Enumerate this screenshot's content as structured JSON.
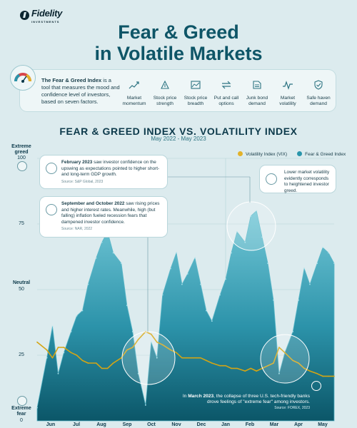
{
  "brand": {
    "name": "Fidelity",
    "tagline": "INVESTMENTS"
  },
  "title": {
    "line1": "Fear & Greed",
    "line2": "in Volatile Markets"
  },
  "intro": {
    "bold": "The Fear & Greed Index",
    "rest": " is a tool that measures the mood and confidence level of investors, based on seven factors.",
    "factors": [
      {
        "icon": "market-momentum-icon",
        "label": "Market momentum"
      },
      {
        "icon": "stock-strength-icon",
        "label": "Stock price strength"
      },
      {
        "icon": "stock-breadth-icon",
        "label": "Stock price breadth"
      },
      {
        "icon": "put-call-icon",
        "label": "Put and call options"
      },
      {
        "icon": "junk-bond-icon",
        "label": "Junk bond demand"
      },
      {
        "icon": "volatility-icon",
        "label": "Market volatility"
      },
      {
        "icon": "safe-haven-icon",
        "label": "Safe haven demand"
      }
    ]
  },
  "chart_title": "FEAR & GREED INDEX VS. VOLATILITY INDEX",
  "chart_subtitle": "May 2022 - May 2023",
  "legend": {
    "vix": "Volatility Index (VIX)",
    "fg": "Fear & Greed Index"
  },
  "axis": {
    "top_label": "Extreme greed",
    "mid_label": "Neutral",
    "bottom_label": "Extreme fear",
    "ticks": [
      "100",
      "75",
      "50",
      "25",
      "0"
    ]
  },
  "callouts": {
    "feb": {
      "bold": "February 2023",
      "text": " saw investor confidence on the upswing as expectations pointed to higher short- and long-term GDP growth.",
      "source": "Source: S&P Global, 2023"
    },
    "sepoct": {
      "bold": "September and October 2022",
      "text": " saw rising prices and higher interest rates. Meanwhile, high (but falling) inflation fueled recession fears that dampened investor confidence.",
      "source": "Source: NAR, 2022"
    },
    "lowvol": {
      "text": "Lower market volatility evidently corresponds to heightened investor greed."
    },
    "march": {
      "pre": "In ",
      "bold": "March 2023",
      "text": ", the collapse of three U.S. tech-friendly banks drove feelings of \"extreme fear\" among investors.",
      "source": "Source: FOREX, 2023"
    }
  },
  "months": [
    "Jun",
    "Jul",
    "Aug",
    "Sep",
    "Oct",
    "Nov",
    "Dec",
    "Jan",
    "Feb",
    "Mar",
    "Apr",
    "May"
  ],
  "colors": {
    "fg_top": "#6cc3d3",
    "fg_bottom": "#0c5d70",
    "vix": "#d4a514",
    "title": "#0e5567",
    "background": "#dcebee"
  },
  "chart_data": {
    "type": "area",
    "title": "FEAR & GREED INDEX VS. VOLATILITY INDEX",
    "subtitle": "May 2022 - May 2023",
    "ylim": [
      0,
      100
    ],
    "x": [
      "2022-05-20",
      "2022-06-01",
      "2022-06-08",
      "2022-06-15",
      "2022-06-22",
      "2022-07-01",
      "2022-07-08",
      "2022-07-15",
      "2022-07-22",
      "2022-08-01",
      "2022-08-08",
      "2022-08-15",
      "2022-08-22",
      "2022-09-01",
      "2022-09-08",
      "2022-09-15",
      "2022-09-22",
      "2022-10-01",
      "2022-10-08",
      "2022-10-15",
      "2022-10-22",
      "2022-11-01",
      "2022-11-08",
      "2022-11-15",
      "2022-11-22",
      "2022-12-01",
      "2022-12-08",
      "2022-12-15",
      "2022-12-22",
      "2023-01-01",
      "2023-01-08",
      "2023-01-15",
      "2023-01-22",
      "2023-02-01",
      "2023-02-08",
      "2023-02-15",
      "2023-02-22",
      "2023-03-01",
      "2023-03-08",
      "2023-03-15",
      "2023-03-22",
      "2023-04-01",
      "2023-04-08",
      "2023-04-15",
      "2023-04-22",
      "2023-05-01",
      "2023-05-08",
      "2023-05-15",
      "2023-05-22"
    ],
    "series": [
      {
        "name": "Fear & Greed Index",
        "color": "#2a95ab",
        "values": [
          5,
          24,
          36,
          18,
          26,
          34,
          40,
          42,
          52,
          62,
          68,
          72,
          64,
          60,
          44,
          34,
          18,
          6,
          30,
          24,
          48,
          58,
          64,
          52,
          56,
          62,
          52,
          42,
          38,
          48,
          54,
          64,
          72,
          68,
          78,
          80,
          70,
          60,
          46,
          18,
          26,
          34,
          46,
          58,
          52,
          60,
          66,
          64,
          60
        ]
      },
      {
        "name": "Volatility Index (VIX)",
        "color": "#d4a514",
        "values": [
          30,
          27,
          24,
          28,
          28,
          26,
          25,
          23,
          22,
          22,
          20,
          20,
          22,
          24,
          27,
          28,
          31,
          34,
          33,
          30,
          29,
          27,
          26,
          24,
          24,
          24,
          24,
          23,
          22,
          21,
          21,
          20,
          20,
          19,
          20,
          19,
          20,
          21,
          22,
          28,
          26,
          23,
          22,
          20,
          19,
          18,
          17,
          17,
          17
        ]
      }
    ]
  }
}
